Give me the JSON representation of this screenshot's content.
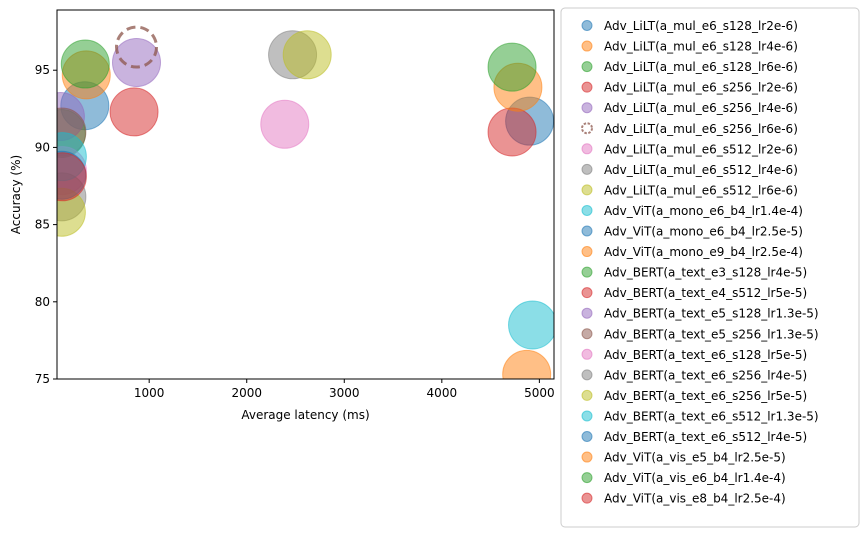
{
  "chart_data": {
    "type": "scatter",
    "title": "",
    "xlabel": "Average latency (ms)",
    "ylabel": "Accuracy (%)",
    "xlim": [
      55,
      5150
    ],
    "ylim": [
      75,
      98.9
    ],
    "xticks": [
      1000,
      2000,
      3000,
      4000,
      5000
    ],
    "yticks": [
      75,
      80,
      85,
      90,
      95
    ],
    "grid": false,
    "legend_position": "outside-right",
    "series": [
      {
        "name": "Adv_LiLT(a_mul_e6_s128_lr2e-6)",
        "color": "#1f77b4",
        "x": 340,
        "y": 92.7,
        "marker": "filled"
      },
      {
        "name": "Adv_LiLT(a_mul_e6_s128_lr4e-6)",
        "color": "#ff7f0e",
        "x": 355,
        "y": 94.7,
        "marker": "filled"
      },
      {
        "name": "Adv_LiLT(a_mul_e6_s128_lr6e-6)",
        "color": "#2ca02c",
        "x": 345,
        "y": 95.4,
        "marker": "filled"
      },
      {
        "name": "Adv_LiLT(a_mul_e6_s256_lr2e-6)",
        "color": "#d62728",
        "x": 845,
        "y": 92.3,
        "marker": "filled"
      },
      {
        "name": "Adv_LiLT(a_mul_e6_s256_lr4e-6)",
        "color": "#9467bd",
        "x": 870,
        "y": 95.5,
        "marker": "filled"
      },
      {
        "name": "Adv_LiLT(a_mul_e6_s256_lr6e-6)",
        "color": "#8c564b",
        "x": 870,
        "y": 96.5,
        "marker": "hollow-dashed"
      },
      {
        "name": "Adv_LiLT(a_mul_e6_s512_lr2e-6)",
        "color": "#e377c2",
        "x": 2390,
        "y": 91.5,
        "marker": "filled"
      },
      {
        "name": "Adv_LiLT(a_mul_e6_s512_lr4e-6)",
        "color": "#7f7f7f",
        "x": 2470,
        "y": 96.0,
        "marker": "filled"
      },
      {
        "name": "Adv_LiLT(a_mul_e6_s512_lr6e-6)",
        "color": "#bcbd22",
        "x": 2620,
        "y": 96.0,
        "marker": "filled"
      },
      {
        "name": "Adv_ViT(a_mono_e6_b4_lr1.4e-4)",
        "color": "#17becf",
        "x": 4930,
        "y": 78.5,
        "marker": "filled"
      },
      {
        "name": "Adv_ViT(a_mono_e6_b4_lr2.5e-5)",
        "color": "#1f77b4",
        "x": 4900,
        "y": 91.7,
        "marker": "filled"
      },
      {
        "name": "Adv_ViT(a_mono_e9_b4_lr2.5e-4)",
        "color": "#ff7f0e",
        "x": 4870,
        "y": 75.3,
        "marker": "filled"
      },
      {
        "name": "Adv_BERT(a_text_e3_s128_lr4e-5)",
        "color": "#2ca02c",
        "x": 100,
        "y": 90.9,
        "marker": "filled"
      },
      {
        "name": "Adv_BERT(a_text_e4_s512_lr5e-5)",
        "color": "#d62728",
        "x": 4720,
        "y": 91.0,
        "marker": "filled"
      },
      {
        "name": "Adv_BERT(a_text_e5_s128_lr1.3e-5)",
        "color": "#9467bd",
        "x": 90,
        "y": 92.0,
        "marker": "filled"
      },
      {
        "name": "Adv_BERT(a_text_e5_s256_lr1.3e-5)",
        "color": "#8c564b",
        "x": 105,
        "y": 91.0,
        "marker": "filled"
      },
      {
        "name": "Adv_BERT(a_text_e6_s128_lr5e-5)",
        "color": "#e377c2",
        "x": 110,
        "y": 88.5,
        "marker": "filled"
      },
      {
        "name": "Adv_BERT(a_text_e6_s256_lr4e-5)",
        "color": "#7f7f7f",
        "x": 105,
        "y": 86.8,
        "marker": "filled"
      },
      {
        "name": "Adv_BERT(a_text_e6_s256_lr5e-5)",
        "color": "#bcbd22",
        "x": 100,
        "y": 85.8,
        "marker": "filled"
      },
      {
        "name": "Adv_BERT(a_text_e6_s512_lr1.3e-5)",
        "color": "#17becf",
        "x": 110,
        "y": 89.4,
        "marker": "filled"
      },
      {
        "name": "Adv_BERT(a_text_e6_s512_lr4e-5)",
        "color": "#1f77b4",
        "x": 105,
        "y": 88.2,
        "marker": "filled"
      },
      {
        "name": "Adv_ViT(a_vis_e5_b4_lr2.5e-5)",
        "color": "#ff7f0e",
        "x": 4780,
        "y": 93.9,
        "marker": "filled"
      },
      {
        "name": "Adv_ViT(a_vis_e6_b4_lr1.4e-4)",
        "color": "#2ca02c",
        "x": 4720,
        "y": 95.2,
        "marker": "filled"
      },
      {
        "name": "Adv_ViT(a_vis_e8_b4_lr2.5e-4)",
        "color": "#d62728",
        "x": 110,
        "y": 88.1,
        "marker": "filled"
      }
    ]
  }
}
